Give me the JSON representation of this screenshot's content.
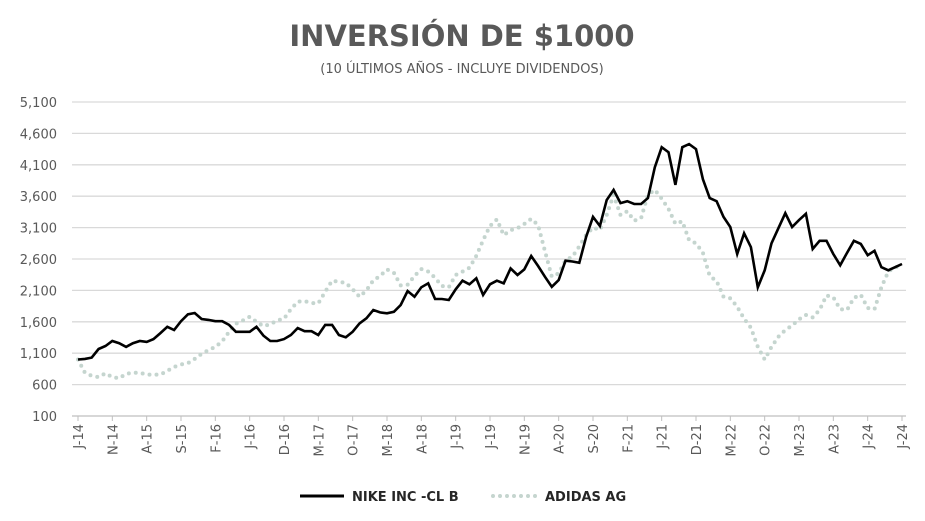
{
  "chart_data": {
    "type": "line",
    "title": "INVERSIÓN DE $1000",
    "subtitle": "(10 ÚLTIMOS AÑOS - INCLUYE DIVIDENDOS)",
    "xlabel": "",
    "ylabel": "",
    "ylim": [
      100,
      5100
    ],
    "y_ticks": [
      "5,100",
      "4,600",
      "4,100",
      "3,600",
      "3,100",
      "2,600",
      "2,100",
      "1,600",
      "1,100",
      "600",
      "100"
    ],
    "y_tick_values": [
      5100,
      4600,
      4100,
      3600,
      3100,
      2600,
      2100,
      1600,
      1100,
      600,
      100
    ],
    "x_tick_labels": [
      "J-14",
      "N-14",
      "A-15",
      "S-15",
      "F-16",
      "J-16",
      "D-16",
      "M-17",
      "O-17",
      "M-18",
      "A-18",
      "J-19",
      "J-19",
      "N-19",
      "A-20",
      "S-20",
      "F-21",
      "J-21",
      "D-21",
      "M-22",
      "O-22",
      "M-23",
      "A-23",
      "J-24",
      "J-24"
    ],
    "x_tick_every_months": 5,
    "months": 121,
    "grid": true,
    "legend_position": "bottom",
    "series": [
      {
        "name": "NIKE INC -CL B",
        "color": "#000000",
        "style": "solid",
        "values": [
          1000,
          1010,
          1030,
          1167,
          1215,
          1295,
          1260,
          1200,
          1260,
          1295,
          1280,
          1325,
          1420,
          1520,
          1470,
          1610,
          1720,
          1740,
          1645,
          1630,
          1610,
          1610,
          1550,
          1440,
          1440,
          1440,
          1520,
          1380,
          1295,
          1295,
          1325,
          1390,
          1500,
          1450,
          1450,
          1390,
          1550,
          1550,
          1390,
          1353,
          1443,
          1575,
          1655,
          1788,
          1750,
          1735,
          1760,
          1867,
          2090,
          2000,
          2150,
          2213,
          1963,
          1963,
          1947,
          2117,
          2254,
          2197,
          2292,
          2026,
          2197,
          2254,
          2213,
          2451,
          2345,
          2435,
          2647,
          2488,
          2318,
          2158,
          2265,
          2573,
          2560,
          2540,
          2950,
          3270,
          3125,
          3540,
          3700,
          3490,
          3520,
          3475,
          3475,
          3570,
          4060,
          4380,
          4300,
          3780,
          4380,
          4430,
          4350,
          3870,
          3570,
          3520,
          3270,
          3110,
          2680,
          3010,
          2790,
          2150,
          2420,
          2850,
          3090,
          3330,
          3110,
          3220,
          3320,
          2760,
          2890,
          2890,
          2680,
          2500,
          2700,
          2890,
          2840,
          2660,
          2730,
          2470,
          2420,
          2470,
          2520
        ]
      },
      {
        "name": "ADIDAS AG",
        "color": "#c5d5cf",
        "style": "dotted",
        "values": [
          1000,
          790,
          740,
          720,
          780,
          720,
          700,
          770,
          790,
          790,
          760,
          760,
          760,
          820,
          880,
          920,
          940,
          1010,
          1090,
          1150,
          1200,
          1290,
          1440,
          1570,
          1620,
          1680,
          1600,
          1530,
          1560,
          1620,
          1650,
          1800,
          1920,
          1930,
          1900,
          1894,
          2080,
          2254,
          2237,
          2220,
          2117,
          2000,
          2100,
          2260,
          2330,
          2435,
          2380,
          2180,
          2190,
          2330,
          2440,
          2400,
          2300,
          2170,
          2150,
          2345,
          2400,
          2460,
          2650,
          2900,
          3125,
          3230,
          2980,
          3060,
          3090,
          3157,
          3240,
          3140,
          2727,
          2320,
          2370,
          2580,
          2636,
          2800,
          2980,
          3100,
          3060,
          3300,
          3620,
          3300,
          3360,
          3210,
          3250,
          3620,
          3700,
          3560,
          3400,
          3160,
          3200,
          2900,
          2850,
          2700,
          2330,
          2250,
          2000,
          1974,
          1840,
          1650,
          1506,
          1200,
          1000,
          1200,
          1362,
          1470,
          1540,
          1640,
          1710,
          1670,
          1790,
          2020,
          1990,
          1800,
          1790,
          1980,
          2030,
          1820,
          1800,
          2150,
          2400,
          2470,
          2480
        ]
      }
    ]
  }
}
